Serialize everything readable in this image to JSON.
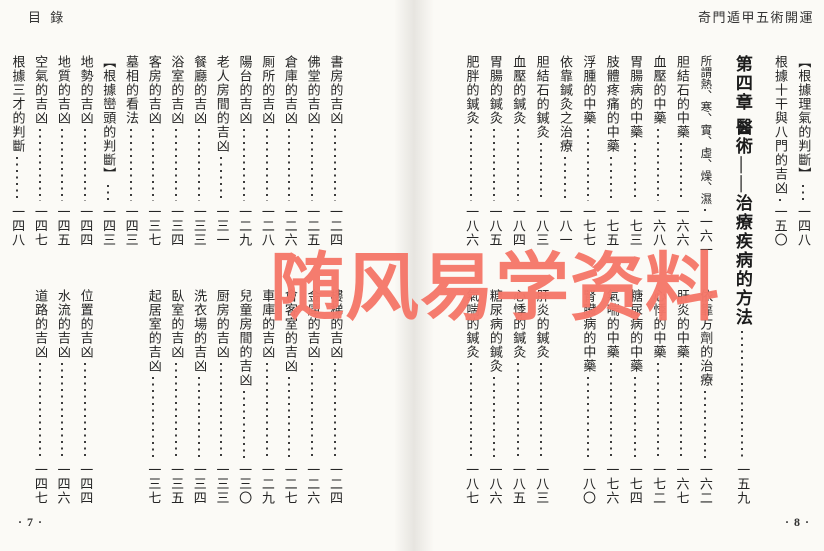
{
  "watermark": "随风易学资料",
  "left_page": {
    "header": "目 錄",
    "footer": "· 7 ·",
    "columns": [
      {
        "top": [
          "書房的吉凶",
          "一二四"
        ],
        "bottom": [
          "樓梯的吉凶",
          "一二四"
        ]
      },
      {
        "top": [
          "佛堂的吉凶",
          "一二五"
        ],
        "bottom": [
          "金庫的吉凶",
          "一二六"
        ]
      },
      {
        "top": [
          "倉庫的吉凶",
          "一二六"
        ],
        "bottom": [
          "會客室的吉凶",
          "一二七"
        ]
      },
      {
        "top": [
          "厠所的吉凶",
          "一二八"
        ],
        "bottom": [
          "車庫的吉凶",
          "一二九"
        ]
      },
      {
        "top": [
          "陽台的吉凶",
          "一二九"
        ],
        "bottom": [
          "兒童房間的吉凶",
          "一三〇"
        ]
      },
      {
        "top": [
          "老人房間的吉凶",
          "一三一"
        ],
        "bottom": [
          "厨房的吉凶",
          "一三三"
        ]
      },
      {
        "top": [
          "餐廳的吉凶",
          "一三三"
        ],
        "bottom": [
          "洗衣場的吉凶",
          "一三四"
        ]
      },
      {
        "top": [
          "浴室的吉凶",
          "一三四"
        ],
        "bottom": [
          "臥室的吉凶",
          "一三五"
        ]
      },
      {
        "top": [
          "客房的吉凶",
          "一三七"
        ],
        "bottom": [
          "起居室的吉凶",
          "一三七"
        ]
      },
      {
        "top": [
          "墓相的看法",
          "一四三"
        ]
      },
      {
        "top": [
          "【根據巒頭的判斷】",
          "一四三"
        ]
      },
      {
        "top": [
          "地勢的吉凶",
          "一四四"
        ],
        "bottom": [
          "位置的吉凶",
          "一四四"
        ]
      },
      {
        "top": [
          "地質的吉凶",
          "一四五"
        ],
        "bottom": [
          "水流的吉凶",
          "一四六"
        ]
      },
      {
        "top": [
          "空氣的吉凶",
          "一四七"
        ],
        "bottom": [
          "道路的吉凶",
          "一四七"
        ]
      },
      {
        "top": [
          "根據三才的判斷",
          "一四八"
        ]
      }
    ]
  },
  "right_page": {
    "header": "奇門遁甲五術開運",
    "footer": "· 8 ·",
    "columns": [
      {
        "top": [
          "【根據理氣的判斷】",
          "一四八"
        ]
      },
      {
        "top": [
          "根據十干與八門的吉凶",
          "一五〇"
        ]
      },
      {
        "chapter": [
          "第四章 醫術——治療疾病的方法",
          "一五九"
        ]
      },
      {
        "top": [
          "所謂熱、寒、實、虛、燥、濕",
          "一六一"
        ],
        "bottom": [
          "依靠方劑的治療",
          "一六二"
        ]
      },
      {
        "top": [
          "胆結石的中藥",
          "一六六"
        ],
        "bottom": [
          "肝炎的中藥",
          "一六七"
        ]
      },
      {
        "top": [
          "血壓的中藥",
          "一六八"
        ],
        "bottom": [
          "心悸的中藥",
          "一七二"
        ]
      },
      {
        "top": [
          "胃腸病的中藥",
          "一七三"
        ],
        "bottom": [
          "糖尿病的中藥",
          "一七四"
        ]
      },
      {
        "top": [
          "肢體疼痛的中藥",
          "一七五"
        ],
        "bottom": [
          "氣喘的中藥",
          "一七六"
        ]
      },
      {
        "top": [
          "浮腫的中藥",
          "一七七"
        ],
        "bottom": [
          "腎臟病的中藥",
          "一八〇"
        ]
      },
      {
        "top": [
          "依靠鍼灸之治療",
          "一八一"
        ]
      },
      {
        "top": [
          "胆結石的鍼灸",
          "一八三"
        ],
        "bottom": [
          "肝炎的鍼灸",
          "一八三"
        ]
      },
      {
        "top": [
          "血壓的鍼灸",
          "一八四"
        ],
        "bottom": [
          "心悸的鍼灸",
          "一八五"
        ]
      },
      {
        "top": [
          "胃腸的鍼灸",
          "一八五"
        ],
        "bottom": [
          "糖尿病的鍼灸",
          "一八六"
        ]
      },
      {
        "top": [
          "肥胖的鍼灸",
          "一八六"
        ],
        "bottom": [
          "氣喘的鍼灸",
          "一八七"
        ]
      }
    ]
  }
}
